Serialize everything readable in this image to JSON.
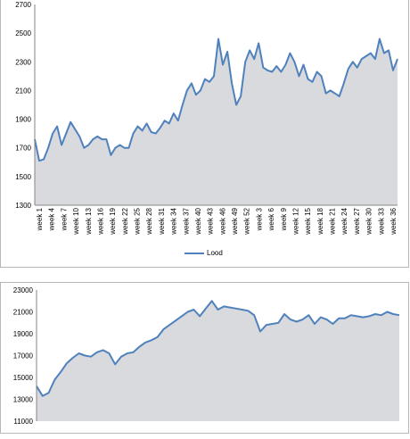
{
  "chart_data": [
    {
      "type": "area",
      "title": "",
      "xlabel": "",
      "ylabel": "",
      "ylim": [
        1300,
        2700
      ],
      "yticks": [
        1300,
        1500,
        1700,
        1900,
        2100,
        2300,
        2500,
        2700
      ],
      "x_tick_labels": [
        "week 1",
        "week 4",
        "week 7",
        "week 10",
        "week 13",
        "week 16",
        "week 19",
        "week 22",
        "week 25",
        "week 28",
        "week 31",
        "week 34",
        "week 37",
        "week 40",
        "week 43",
        "week 46",
        "week 49",
        "week 52",
        "week 3",
        "week 6",
        "week 9",
        "week 12",
        "week 15",
        "week 18",
        "week 21",
        "week 24",
        "week 27",
        "week 30",
        "week 33",
        "week 36"
      ],
      "series": [
        {
          "name": "Lood",
          "color": "#4f81bd",
          "fill": "#d9dadd",
          "values": [
            1760,
            1610,
            1620,
            1700,
            1800,
            1850,
            1720,
            1800,
            1880,
            1830,
            1780,
            1700,
            1720,
            1760,
            1780,
            1760,
            1760,
            1650,
            1700,
            1720,
            1700,
            1700,
            1800,
            1850,
            1820,
            1870,
            1810,
            1800,
            1840,
            1890,
            1870,
            1940,
            1890,
            2000,
            2100,
            2150,
            2070,
            2100,
            2180,
            2160,
            2200,
            2460,
            2280,
            2370,
            2150,
            2000,
            2060,
            2300,
            2380,
            2320,
            2430,
            2260,
            2240,
            2230,
            2270,
            2230,
            2280,
            2360,
            2300,
            2200,
            2280,
            2180,
            2160,
            2230,
            2200,
            2080,
            2100,
            2080,
            2060,
            2150,
            2250,
            2300,
            2260,
            2320,
            2340,
            2360,
            2320,
            2460,
            2360,
            2380,
            2240,
            2320
          ]
        }
      ]
    },
    {
      "type": "area",
      "title": "",
      "xlabel": "",
      "ylabel": "",
      "ylim": [
        11000,
        23000
      ],
      "yticks": [
        11000,
        13000,
        15000,
        17000,
        19000,
        21000,
        23000
      ],
      "series": [
        {
          "name": "",
          "color": "#4f81bd",
          "fill": "#d9dadd",
          "values": [
            14200,
            13300,
            13600,
            14800,
            15500,
            16300,
            16800,
            17200,
            17000,
            16900,
            17300,
            17500,
            17200,
            16200,
            16900,
            17200,
            17300,
            17800,
            18200,
            18400,
            18700,
            19400,
            19800,
            20200,
            20600,
            21000,
            21200,
            20600,
            21300,
            22000,
            21200,
            21500,
            21400,
            21300,
            21200,
            21100,
            20700,
            19200,
            19800,
            19900,
            20000,
            20800,
            20300,
            20100,
            20300,
            20700,
            19900,
            20500,
            20300,
            19900,
            20400,
            20400,
            20700,
            20600,
            20500,
            20600,
            20800,
            20700,
            21000,
            20800,
            20700
          ]
        }
      ]
    }
  ]
}
